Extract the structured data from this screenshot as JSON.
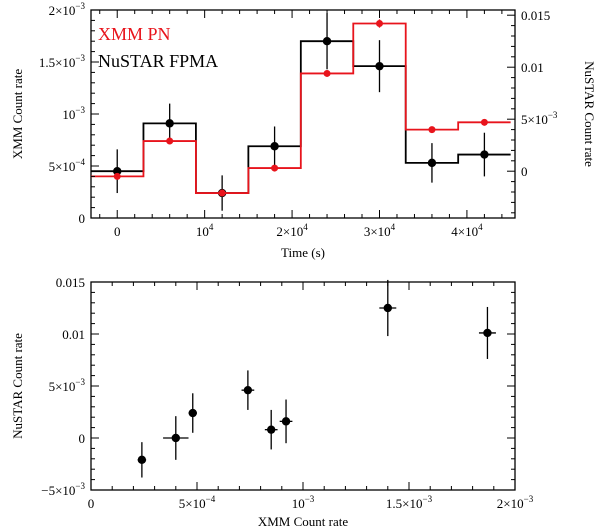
{
  "chart_data": [
    {
      "type": "line",
      "subtype": "step-histogram-with-error-bars",
      "xlabel": "Time (s)",
      "ylabel": "XMM Count rate",
      "y2label": "NuSTAR Count rate",
      "xlim": [
        -3000,
        45500
      ],
      "ylim": [
        0,
        0.002
      ],
      "y2lim": [
        -0.0045,
        0.0155
      ],
      "x_ticks": [
        {
          "value": 0,
          "label": "0"
        },
        {
          "value": 10000,
          "label": "10^4"
        },
        {
          "value": 20000,
          "label": "2×10^4"
        },
        {
          "value": 30000,
          "label": "3×10^4"
        },
        {
          "value": 40000,
          "label": "4×10^4"
        }
      ],
      "y_ticks": [
        {
          "value": 0,
          "label": "0"
        },
        {
          "value": 0.0005,
          "label": "5×10^-4"
        },
        {
          "value": 0.001,
          "label": "10^-3"
        },
        {
          "value": 0.0015,
          "label": "1.5×10^-3"
        },
        {
          "value": 0.002,
          "label": "2×10^-3"
        }
      ],
      "y2_ticks": [
        {
          "value": 0,
          "label": "0"
        },
        {
          "value": 0.005,
          "label": "5×10^-3"
        },
        {
          "value": 0.01,
          "label": "0.01"
        },
        {
          "value": 0.015,
          "label": "0.015"
        }
      ],
      "grid": false,
      "legend": {
        "position": "top-left"
      },
      "series": [
        {
          "name": "XMM PN",
          "axis": "left",
          "color": "#e8141c",
          "bin_edges": [
            -3000,
            3000,
            9000,
            15000,
            21000,
            27000,
            33000,
            39000,
            45000
          ],
          "bin_values": [
            0.0004,
            0.00074,
            0.00024,
            0.00048,
            0.00139,
            0.00187,
            0.00085,
            0.00092
          ],
          "points": [
            {
              "x": 0,
              "y": 0.0004,
              "yerr": 2e-05
            },
            {
              "x": 6000,
              "y": 0.00074,
              "yerr": 3e-05
            },
            {
              "x": 12000,
              "y": 0.00024,
              "yerr": 2e-05
            },
            {
              "x": 18000,
              "y": 0.00048,
              "yerr": 2e-05
            },
            {
              "x": 24000,
              "y": 0.00139,
              "yerr": 3e-05
            },
            {
              "x": 30000,
              "y": 0.00187,
              "yerr": 4e-05
            },
            {
              "x": 36000,
              "y": 0.00085,
              "yerr": 2e-05
            },
            {
              "x": 42000,
              "y": 0.00092,
              "yerr": 2e-05
            }
          ]
        },
        {
          "name": "NuSTAR FPMA",
          "axis": "right",
          "color": "#000000",
          "bin_edges": [
            -3000,
            3000,
            9000,
            15000,
            21000,
            27000,
            33000,
            39000,
            45000
          ],
          "bin_values": [
            0.0,
            0.0046,
            -0.0021,
            0.0024,
            0.0125,
            0.0101,
            0.0008,
            0.0016
          ],
          "points": [
            {
              "x": 0,
              "y": 0.0,
              "yerr": 0.0021
            },
            {
              "x": 6000,
              "y": 0.0046,
              "yerr": 0.0019
            },
            {
              "x": 12000,
              "y": -0.0021,
              "yerr": 0.0017
            },
            {
              "x": 18000,
              "y": 0.0024,
              "yerr": 0.0019
            },
            {
              "x": 24000,
              "y": 0.0125,
              "yerr": 0.0027
            },
            {
              "x": 30000,
              "y": 0.0101,
              "yerr": 0.0025
            },
            {
              "x": 36000,
              "y": 0.0008,
              "yerr": 0.0019
            },
            {
              "x": 42000,
              "y": 0.0016,
              "yerr": 0.0021
            }
          ]
        }
      ]
    },
    {
      "type": "scatter",
      "subtype": "scatter-with-xy-error-bars",
      "xlabel": "XMM Count rate",
      "ylabel": "NuSTAR Count rate",
      "xlim": [
        0,
        0.002
      ],
      "ylim": [
        -0.005,
        0.015
      ],
      "x_ticks": [
        {
          "value": 0,
          "label": "0"
        },
        {
          "value": 0.0005,
          "label": "5×10^-4"
        },
        {
          "value": 0.001,
          "label": "10^-3"
        },
        {
          "value": 0.0015,
          "label": "1.5×10^-3"
        },
        {
          "value": 0.002,
          "label": "2×10^-3"
        }
      ],
      "y_ticks": [
        {
          "value": -0.005,
          "label": "−5×10^-3"
        },
        {
          "value": 0,
          "label": "0"
        },
        {
          "value": 0.005,
          "label": "5×10^-3"
        },
        {
          "value": 0.01,
          "label": "0.01"
        },
        {
          "value": 0.015,
          "label": "0.015"
        }
      ],
      "grid": false,
      "series": [
        {
          "color": "#000000",
          "points": [
            {
              "x": 0.00024,
              "y": -0.0021,
              "xerr": 2e-05,
              "yerr": 0.0017
            },
            {
              "x": 0.0004,
              "y": 0.0,
              "xerr": 6e-05,
              "yerr": 0.0021
            },
            {
              "x": 0.00048,
              "y": 0.0024,
              "xerr": 2e-05,
              "yerr": 0.0019
            },
            {
              "x": 0.00074,
              "y": 0.0046,
              "xerr": 3e-05,
              "yerr": 0.0019
            },
            {
              "x": 0.00085,
              "y": 0.0008,
              "xerr": 3e-05,
              "yerr": 0.0019
            },
            {
              "x": 0.00092,
              "y": 0.0016,
              "xerr": 3e-05,
              "yerr": 0.0021
            },
            {
              "x": 0.0014,
              "y": 0.0125,
              "xerr": 4e-05,
              "yerr": 0.0027
            },
            {
              "x": 0.00187,
              "y": 0.0101,
              "xerr": 4e-05,
              "yerr": 0.0025
            }
          ]
        }
      ]
    }
  ]
}
